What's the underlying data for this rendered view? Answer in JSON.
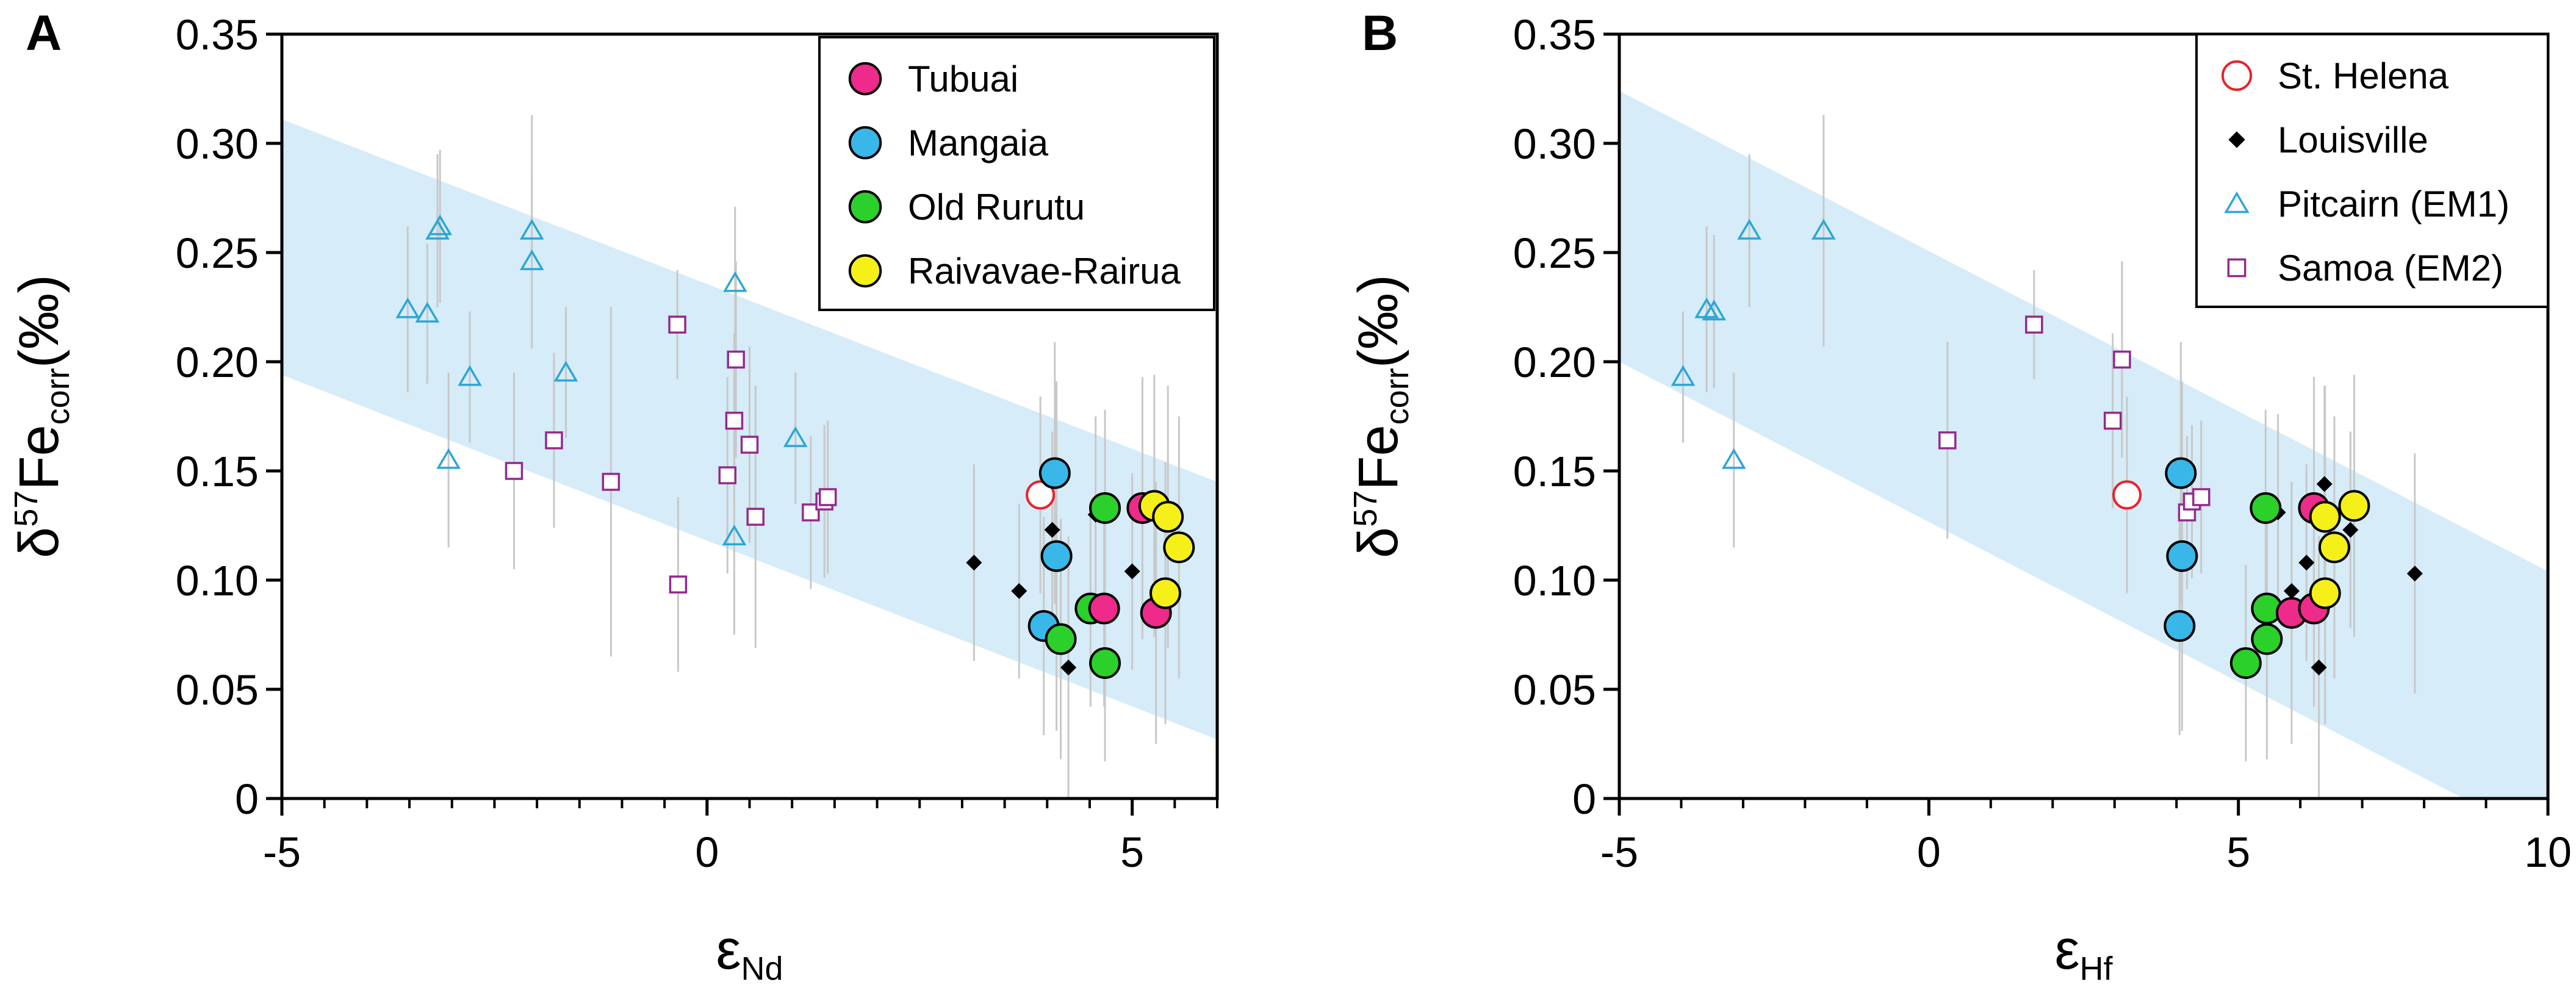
{
  "colors": {
    "band": "#d6ecf8",
    "errorbar": "#c8c8c8",
    "tubuai": "#ee2a8a",
    "mangaia": "#38b7e8",
    "old_rurutu": "#2bd02b",
    "raivavae": "#f5f018",
    "st_helena": "#e8232a",
    "louisville": "#000000",
    "pitcairn": "#2ca6d4",
    "samoa": "#932a8e"
  },
  "chart_data": [
    {
      "type": "scatter",
      "panel_label": "A",
      "xlabel": {
        "main": "ε",
        "sub": "Nd"
      },
      "ylabel": {
        "main": "δ",
        "sup": "57",
        "mid": "Fe",
        "sub": "corr",
        "unit": "(‰)"
      },
      "xlim": [
        -5,
        6
      ],
      "ylim": [
        0,
        0.35
      ],
      "x_ticks": [
        -5,
        0,
        5
      ],
      "x_tick_labels": [
        "-5",
        "0",
        "5"
      ],
      "x_minor_step": 0.5,
      "y_ticks": [
        0,
        0.05,
        0.1,
        0.15,
        0.2,
        0.25,
        0.3,
        0.35
      ],
      "y_tick_labels": [
        "0",
        "0.05",
        "0.10",
        "0.15",
        "0.20",
        "0.25",
        "0.30",
        "0.35"
      ],
      "band": {
        "x": [
          -5,
          6
        ],
        "upper": [
          0.311,
          0.145
        ],
        "lower": [
          0.194,
          0.027
        ]
      },
      "legend": {
        "position": "top-right",
        "entries": [
          {
            "label": "Tubuai",
            "series": "tubuai"
          },
          {
            "label": "Mangaia",
            "series": "mangaia"
          },
          {
            "label": "Old Rurutu",
            "series": "old_rurutu"
          },
          {
            "label": "Raivavae-Rairua",
            "series": "raivavae"
          }
        ]
      },
      "series": [
        {
          "id": "pitcairn",
          "marker": "triangle",
          "points": [
            {
              "x": -3.52,
              "y": 0.224,
              "err": 0.038
            },
            {
              "x": -3.29,
              "y": 0.222,
              "err": 0.032
            },
            {
              "x": -3.17,
              "y": 0.26,
              "err": 0.035
            },
            {
              "x": -3.14,
              "y": 0.262,
              "err": 0.035
            },
            {
              "x": -3.04,
              "y": 0.155,
              "err": 0.04
            },
            {
              "x": -2.79,
              "y": 0.193,
              "err": 0.03
            },
            {
              "x": -2.06,
              "y": 0.26,
              "err": 0.053
            },
            {
              "x": -2.06,
              "y": 0.246,
              "err": 0.04
            },
            {
              "x": -1.66,
              "y": 0.195,
              "err": 0.03
            },
            {
              "x": 0.33,
              "y": 0.236,
              "err": 0.035
            },
            {
              "x": 0.32,
              "y": 0.12,
              "err": 0.045
            },
            {
              "x": 1.04,
              "y": 0.165,
              "err": 0.03
            }
          ]
        },
        {
          "id": "samoa",
          "marker": "square",
          "points": [
            {
              "x": -2.27,
              "y": 0.15,
              "err": 0.045
            },
            {
              "x": -1.8,
              "y": 0.164,
              "err": 0.04
            },
            {
              "x": -1.13,
              "y": 0.145,
              "err": 0.08
            },
            {
              "x": -0.35,
              "y": 0.217,
              "err": 0.025
            },
            {
              "x": -0.34,
              "y": 0.098,
              "err": 0.04
            },
            {
              "x": 0.24,
              "y": 0.148,
              "err": 0.045
            },
            {
              "x": 0.32,
              "y": 0.173,
              "err": 0.04
            },
            {
              "x": 0.34,
              "y": 0.201,
              "err": 0.045
            },
            {
              "x": 0.5,
              "y": 0.162,
              "err": 0.045
            },
            {
              "x": 0.57,
              "y": 0.129,
              "err": 0.06
            },
            {
              "x": 1.22,
              "y": 0.131,
              "err": 0.035
            },
            {
              "x": 1.38,
              "y": 0.136,
              "err": 0.035
            },
            {
              "x": 1.42,
              "y": 0.138,
              "err": 0.035
            }
          ]
        },
        {
          "id": "louisville",
          "marker": "diamond",
          "points": [
            {
              "x": 3.14,
              "y": 0.108,
              "err": 0.045
            },
            {
              "x": 3.67,
              "y": 0.095,
              "err": 0.04
            },
            {
              "x": 4.06,
              "y": 0.123,
              "err": 0.045
            },
            {
              "x": 4.25,
              "y": 0.06,
              "err": 0.06
            },
            {
              "x": 4.57,
              "y": 0.13,
              "err": 0.045
            },
            {
              "x": 5.0,
              "y": 0.104,
              "err": 0.045
            }
          ]
        },
        {
          "id": "st_helena",
          "marker": "open-circle",
          "points": [
            {
              "x": 3.92,
              "y": 0.139,
              "err": 0.045
            }
          ]
        },
        {
          "id": "mangaia",
          "marker": "circle",
          "points": [
            {
              "x": 3.96,
              "y": 0.079,
              "err": 0.05
            },
            {
              "x": 4.09,
              "y": 0.149,
              "err": 0.06
            },
            {
              "x": 4.11,
              "y": 0.111,
              "err": 0.08
            }
          ]
        },
        {
          "id": "old_rurutu",
          "marker": "circle",
          "points": [
            {
              "x": 4.16,
              "y": 0.073,
              "err": 0.055
            },
            {
              "x": 4.51,
              "y": 0.087,
              "err": 0.045
            },
            {
              "x": 4.68,
              "y": 0.062,
              "err": 0.045
            },
            {
              "x": 4.68,
              "y": 0.133,
              "err": 0.045
            }
          ]
        },
        {
          "id": "tubuai",
          "marker": "circle",
          "points": [
            {
              "x": 4.67,
              "y": 0.087,
              "err": 0.045
            },
            {
              "x": 5.12,
              "y": 0.133,
              "err": 0.06
            },
            {
              "x": 5.28,
              "y": 0.085,
              "err": 0.06
            }
          ]
        },
        {
          "id": "raivavae",
          "marker": "circle",
          "points": [
            {
              "x": 5.26,
              "y": 0.134,
              "err": 0.06
            },
            {
              "x": 5.39,
              "y": 0.094,
              "err": 0.06
            },
            {
              "x": 5.42,
              "y": 0.129,
              "err": 0.06
            },
            {
              "x": 5.55,
              "y": 0.115,
              "err": 0.06
            }
          ]
        }
      ]
    },
    {
      "type": "scatter",
      "panel_label": "B",
      "xlabel": {
        "main": "ε",
        "sub": "Hf"
      },
      "ylabel": {
        "main": "δ",
        "sup": "57",
        "mid": "Fe",
        "sub": "corr",
        "unit": "(‰)"
      },
      "xlim": [
        -5,
        10
      ],
      "ylim": [
        0,
        0.35
      ],
      "x_ticks": [
        -5,
        0,
        5,
        10
      ],
      "x_tick_labels": [
        "-5",
        "0",
        "5",
        "10"
      ],
      "x_minor_step": 1,
      "y_ticks": [
        0,
        0.05,
        0.1,
        0.15,
        0.2,
        0.25,
        0.3,
        0.35
      ],
      "y_tick_labels": [
        "0",
        "0.05",
        "0.10",
        "0.15",
        "0.20",
        "0.25",
        "0.30",
        "0.35"
      ],
      "band": {
        "x": [
          -5,
          10
        ],
        "upper": [
          0.324,
          0.104
        ],
        "lower": [
          0.2,
          -0.02
        ]
      },
      "legend": {
        "position": "top-right",
        "entries": [
          {
            "label": "St. Helena",
            "series": "st_helena"
          },
          {
            "label": "Louisville",
            "series": "louisville"
          },
          {
            "label": "Pitcairn (EM1)",
            "series": "pitcairn"
          },
          {
            "label": "Samoa (EM2)",
            "series": "samoa"
          }
        ]
      },
      "series": [
        {
          "id": "pitcairn",
          "marker": "triangle",
          "points": [
            {
              "x": -3.97,
              "y": 0.193,
              "err": 0.03
            },
            {
              "x": -3.59,
              "y": 0.224,
              "err": 0.038
            },
            {
              "x": -3.47,
              "y": 0.223,
              "err": 0.035
            },
            {
              "x": -3.15,
              "y": 0.155,
              "err": 0.04
            },
            {
              "x": -2.9,
              "y": 0.26,
              "err": 0.035
            },
            {
              "x": -1.7,
              "y": 0.26,
              "err": 0.053
            }
          ]
        },
        {
          "id": "samoa",
          "marker": "square",
          "points": [
            {
              "x": 0.3,
              "y": 0.164,
              "err": 0.045
            },
            {
              "x": 1.7,
              "y": 0.217,
              "err": 0.025
            },
            {
              "x": 2.97,
              "y": 0.173,
              "err": 0.04
            },
            {
              "x": 3.12,
              "y": 0.201,
              "err": 0.045
            },
            {
              "x": 4.17,
              "y": 0.131,
              "err": 0.035
            },
            {
              "x": 4.25,
              "y": 0.136,
              "err": 0.035
            },
            {
              "x": 4.4,
              "y": 0.138,
              "err": 0.035
            }
          ]
        },
        {
          "id": "louisville",
          "marker": "diamond",
          "points": [
            {
              "x": 5.64,
              "y": 0.131,
              "err": 0.045
            },
            {
              "x": 5.86,
              "y": 0.095,
              "err": 0.04
            },
            {
              "x": 6.1,
              "y": 0.108,
              "err": 0.045
            },
            {
              "x": 6.3,
              "y": 0.06,
              "err": 0.06
            },
            {
              "x": 6.39,
              "y": 0.144,
              "err": 0.045
            },
            {
              "x": 6.81,
              "y": 0.123,
              "err": 0.045
            },
            {
              "x": 7.85,
              "y": 0.103,
              "err": 0.055
            }
          ]
        },
        {
          "id": "st_helena",
          "marker": "open-circle",
          "points": [
            {
              "x": 3.2,
              "y": 0.139,
              "err": 0.045
            }
          ]
        },
        {
          "id": "mangaia",
          "marker": "circle",
          "points": [
            {
              "x": 4.05,
              "y": 0.079,
              "err": 0.05
            },
            {
              "x": 4.07,
              "y": 0.149,
              "err": 0.06
            },
            {
              "x": 4.09,
              "y": 0.111,
              "err": 0.08
            }
          ]
        },
        {
          "id": "old_rurutu",
          "marker": "circle",
          "points": [
            {
              "x": 5.12,
              "y": 0.062,
              "err": 0.045
            },
            {
              "x": 5.46,
              "y": 0.073,
              "err": 0.055
            },
            {
              "x": 5.46,
              "y": 0.087,
              "err": 0.045
            },
            {
              "x": 5.44,
              "y": 0.133,
              "err": 0.045
            }
          ]
        },
        {
          "id": "tubuai",
          "marker": "circle",
          "points": [
            {
              "x": 5.86,
              "y": 0.085,
              "err": 0.06
            },
            {
              "x": 6.22,
              "y": 0.087,
              "err": 0.045
            },
            {
              "x": 6.22,
              "y": 0.133,
              "err": 0.06
            }
          ]
        },
        {
          "id": "raivavae",
          "marker": "circle",
          "points": [
            {
              "x": 6.4,
              "y": 0.094,
              "err": 0.06
            },
            {
              "x": 6.4,
              "y": 0.129,
              "err": 0.06
            },
            {
              "x": 6.55,
              "y": 0.115,
              "err": 0.06
            },
            {
              "x": 6.87,
              "y": 0.134,
              "err": 0.06
            }
          ]
        }
      ]
    }
  ]
}
